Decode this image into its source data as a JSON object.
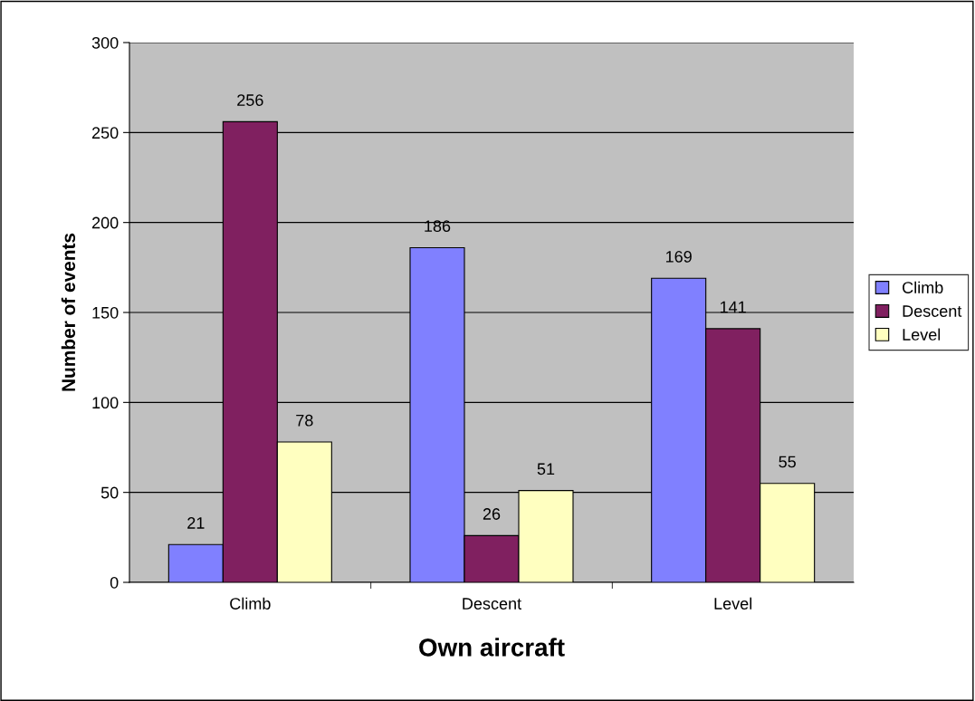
{
  "chart_data": {
    "type": "bar",
    "xlabel": "Own aircraft",
    "ylabel": "Number of events",
    "categories": [
      "Climb",
      "Descent",
      "Level"
    ],
    "series": [
      {
        "name": "Climb",
        "color": "#8080ff",
        "values": [
          21,
          186,
          169
        ]
      },
      {
        "name": "Descent",
        "color": "#802060",
        "values": [
          256,
          26,
          141
        ]
      },
      {
        "name": "Level",
        "color": "#ffffc0",
        "values": [
          78,
          51,
          55
        ]
      }
    ],
    "ylim": [
      0,
      300
    ],
    "yticks": [
      0,
      50,
      100,
      150,
      200,
      250,
      300
    ],
    "grid": "y",
    "legend": "right",
    "data_labels": true
  }
}
